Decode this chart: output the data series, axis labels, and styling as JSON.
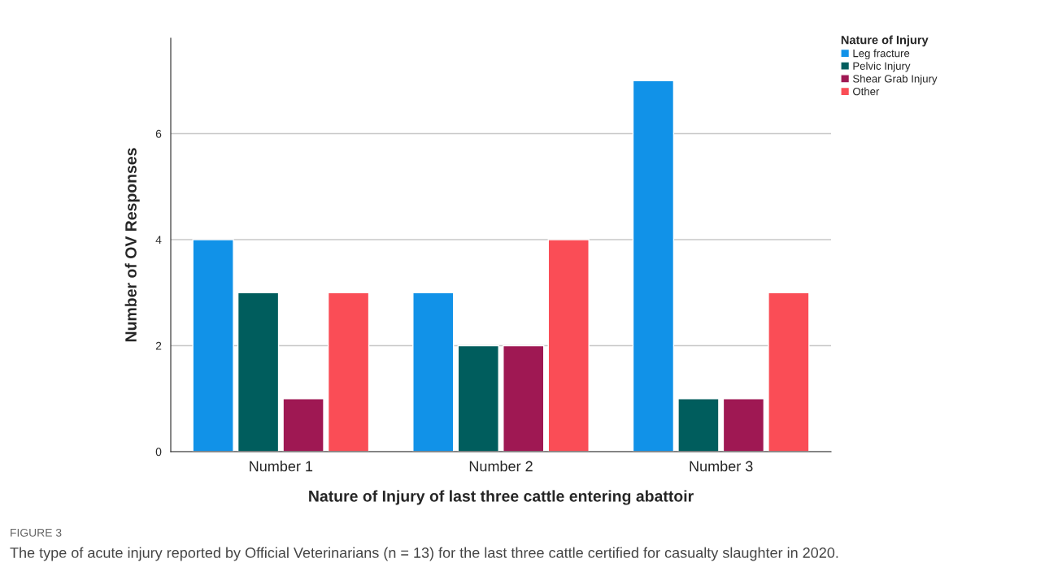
{
  "chart_data": {
    "type": "bar",
    "xlabel": "Nature of Injury of last three cattle entering abattoir",
    "ylabel": "Number of OV Responses",
    "legend_title": "Nature of Injury",
    "categories": [
      "Number 1",
      "Number 2",
      "Number 3"
    ],
    "series": [
      {
        "name": "Leg fracture",
        "color": "#1192e8",
        "values": [
          4,
          3,
          7
        ]
      },
      {
        "name": "Pelvic Injury",
        "color": "#005d5d",
        "values": [
          3,
          2,
          1
        ]
      },
      {
        "name": "Shear Grab Injury",
        "color": "#9f1853",
        "values": [
          1,
          2,
          1
        ]
      },
      {
        "name": "Other",
        "color": "#fa4d56",
        "values": [
          3,
          4,
          3
        ]
      }
    ],
    "ylim": [
      0,
      7.8
    ],
    "yticks": [
      0,
      2,
      4,
      6
    ],
    "grid": "y",
    "legend": "top right",
    "annotations": [
      "FIGURE 3",
      "The type of acute injury reported by Official Veterinarians (n = 13) for the last three cattle certified for casualty slaughter in 2020."
    ]
  }
}
